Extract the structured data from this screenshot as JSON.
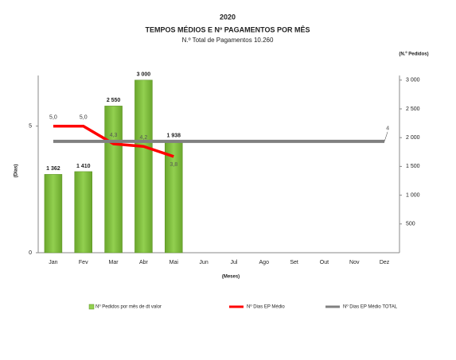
{
  "chart_data": {
    "type": "bar_line",
    "title": "2020",
    "subtitle": "TEMPOS MÉDIOS E Nº PAGAMENTOS POR MÊS",
    "note": "N.º Total de Pagamentos 10.260",
    "ylabel": "(Dias)",
    "xlabel": "(Meses)",
    "y2label": "(N.º Pedidos)",
    "categories": [
      "Jan",
      "Fev",
      "Mar",
      "Abr",
      "Mai",
      "Jun",
      "Jul",
      "Ago",
      "Set",
      "Out",
      "Nov",
      "Dez"
    ],
    "ylim": [
      0,
      7
    ],
    "yticks": [
      0,
      5
    ],
    "y2lim": [
      0,
      3080
    ],
    "y2ticks": [
      {
        "value": 500,
        "label": "500"
      },
      {
        "value": 1000,
        "label": "1 000"
      },
      {
        "value": 1500,
        "label": "1 500"
      },
      {
        "value": 2000,
        "label": "2 000"
      },
      {
        "value": 2500,
        "label": "2 500"
      },
      {
        "value": 3000,
        "label": "3 000"
      }
    ],
    "series": [
      {
        "name": "Nº Pedidos por mês de dt valor",
        "type": "bar",
        "axis": "y2",
        "color": "#92d050",
        "values": [
          1362,
          1410,
          2550,
          3000,
          1938,
          null,
          null,
          null,
          null,
          null,
          null,
          null
        ],
        "value_labels": [
          "1 362",
          "1 410",
          "2 550",
          "3 000",
          "1 938",
          null,
          null,
          null,
          null,
          null,
          null,
          null
        ]
      },
      {
        "name": "Nº Dias EP Médio",
        "type": "line",
        "color": "#ff0000",
        "values": [
          5.0,
          5.0,
          4.3,
          4.2,
          3.8,
          null,
          null,
          null,
          null,
          null,
          null,
          null
        ],
        "value_labels": [
          "5,0",
          "5,0",
          "4,3",
          "4,2",
          "3,8",
          null,
          null,
          null,
          null,
          null,
          null,
          null
        ]
      },
      {
        "name": "Nº Dias EP Médio TOTAL",
        "type": "line",
        "color": "#808080",
        "values": [
          4.4,
          4.4,
          4.4,
          4.4,
          4.4,
          4.4,
          4.4,
          4.4,
          4.4,
          4.4,
          4.4,
          4.4
        ],
        "value_labels": [
          null,
          null,
          null,
          null,
          null,
          null,
          null,
          null,
          null,
          null,
          null,
          "4"
        ]
      }
    ]
  }
}
